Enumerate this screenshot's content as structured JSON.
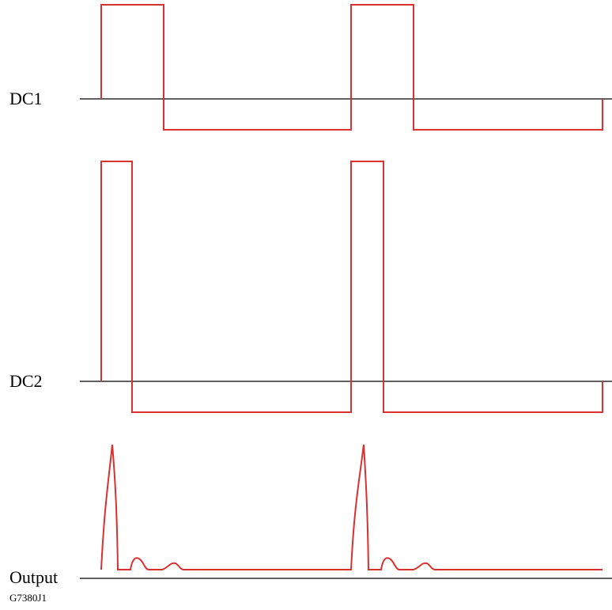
{
  "diagram": {
    "colors": {
      "waveform": "#d93030",
      "baseline": "#000000",
      "text": "#000000"
    },
    "labels": {
      "dc1": "DC1",
      "dc2": "DC2",
      "output": "Output",
      "figure_code": "G7380J1"
    },
    "signals": [
      {
        "id": "dc1",
        "kind": "square-pulse-train",
        "duty": "long high pulse, then negative level"
      },
      {
        "id": "dc2",
        "kind": "square-pulse-train",
        "duty": "short high pulse, then negative level"
      },
      {
        "id": "output",
        "kind": "sharp spike followed by two small ripples"
      }
    ]
  }
}
